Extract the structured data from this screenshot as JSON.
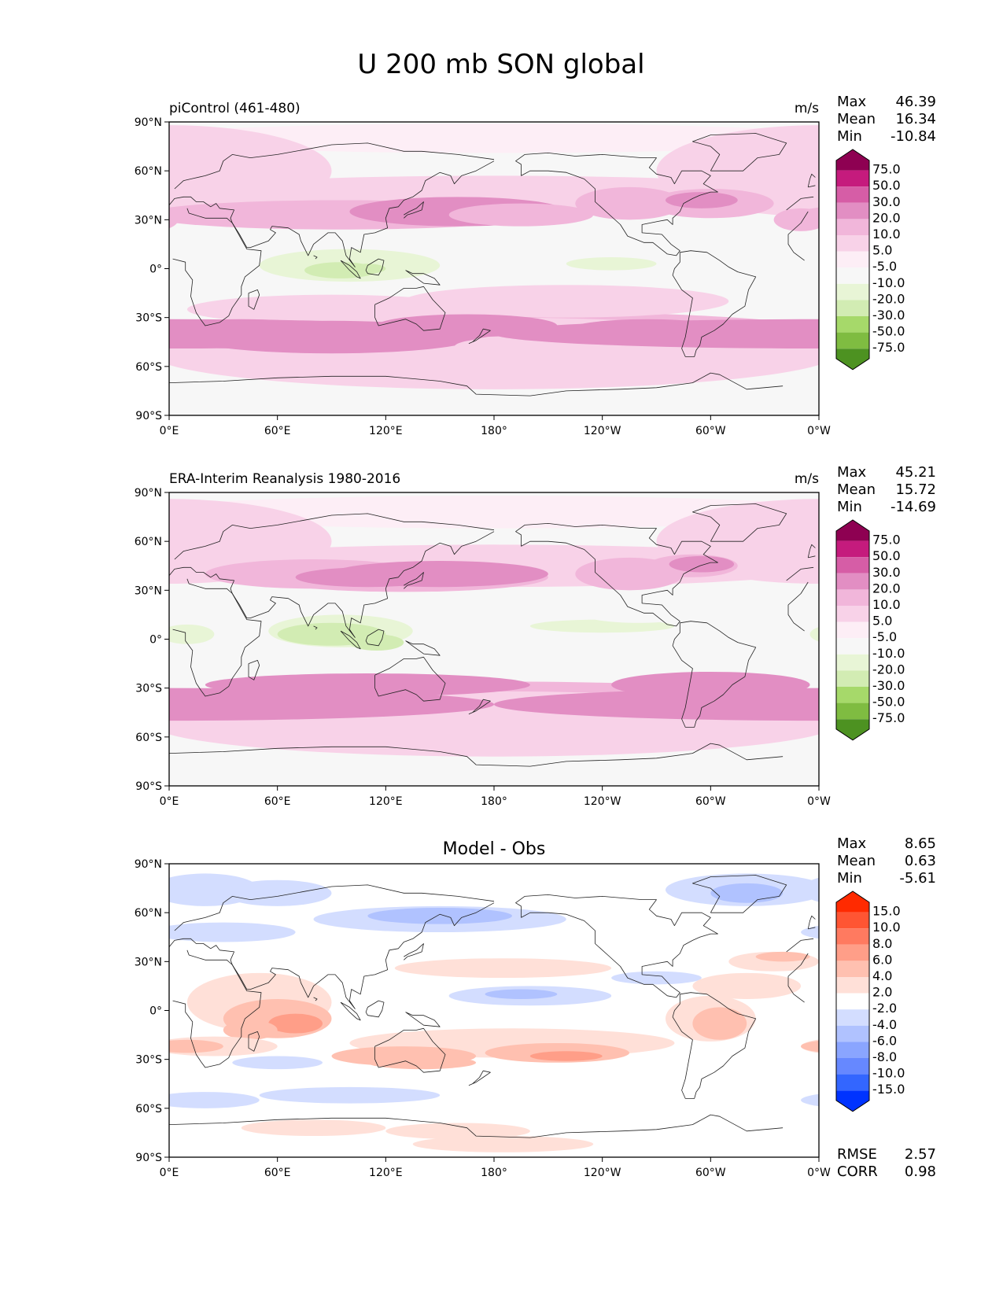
{
  "figure_title": "U 200 mb SON global",
  "colors": {
    "wind": [
      "#276419",
      "#4d9221",
      "#7fbc41",
      "#a6d96a",
      "#d2ecb3",
      "#e8f5d6",
      "#f7f7f7",
      "#fdeef6",
      "#f8d2e8",
      "#f1b6da",
      "#e28ec3",
      "#d65da6",
      "#c51b7d",
      "#8e0152"
    ],
    "diff": [
      "#0033ff",
      "#3366ff",
      "#6688ff",
      "#8aa5ff",
      "#b0c2ff",
      "#d3ddff",
      "#ffffff",
      "#ffe0d8",
      "#ffc0b0",
      "#ff9e88",
      "#ff7a60",
      "#ff5533",
      "#ff2a00"
    ]
  },
  "charts": [
    {
      "title_left": "piControl (461-480)",
      "title_center": "",
      "units": "m/s",
      "stats": [
        {
          "label": "Max",
          "value": "46.39"
        },
        {
          "label": "Mean",
          "value": "16.34"
        },
        {
          "label": "Min",
          "value": "-10.84"
        }
      ],
      "extra_stats": [],
      "colorbar_labels": [
        "75.0",
        "50.0",
        "30.0",
        "20.0",
        "10.0",
        "5.0",
        "-5.0",
        "-10.0",
        "-20.0",
        "-30.0",
        "-50.0",
        "-75.0"
      ],
      "palette": "wind"
    },
    {
      "title_left": "ERA-Interim Reanalysis 1980-2016",
      "title_center": "",
      "units": "m/s",
      "stats": [
        {
          "label": "Max",
          "value": "45.21"
        },
        {
          "label": "Mean",
          "value": "15.72"
        },
        {
          "label": "Min",
          "value": "-14.69"
        }
      ],
      "extra_stats": [],
      "colorbar_labels": [
        "75.0",
        "50.0",
        "30.0",
        "20.0",
        "10.0",
        "5.0",
        "-5.0",
        "-10.0",
        "-20.0",
        "-30.0",
        "-50.0",
        "-75.0"
      ],
      "palette": "wind"
    },
    {
      "title_left": "",
      "title_center": "Model - Obs",
      "units": "",
      "stats": [
        {
          "label": "Max",
          "value": "8.65"
        },
        {
          "label": "Mean",
          "value": "0.63"
        },
        {
          "label": "Min",
          "value": "-5.61"
        }
      ],
      "extra_stats": [
        {
          "label": "RMSE",
          "value": "2.57"
        },
        {
          "label": "CORR",
          "value": "0.98"
        }
      ],
      "colorbar_labels": [
        "15.0",
        "10.0",
        "8.0",
        "6.0",
        "4.0",
        "2.0",
        "-2.0",
        "-4.0",
        "-6.0",
        "-8.0",
        "-10.0",
        "-15.0"
      ],
      "palette": "diff"
    }
  ],
  "axes": {
    "lat_ticks": [
      "90°N",
      "60°N",
      "30°N",
      "0°",
      "30°S",
      "60°S",
      "90°S"
    ],
    "lon_ticks": [
      "0°E",
      "60°E",
      "120°E",
      "180°",
      "120°W",
      "60°W",
      "0°W"
    ]
  },
  "chart_data": [
    {
      "type": "heatmap",
      "title": "piControl (461-480)",
      "units": "m/s",
      "xlim": [
        0,
        360
      ],
      "ylim": [
        -90,
        90
      ],
      "levels": [
        -75,
        -50,
        -30,
        -20,
        -10,
        -5,
        5,
        10,
        20,
        30,
        50,
        75
      ],
      "max": 46.39,
      "mean": 16.34,
      "min": -10.84
    },
    {
      "type": "heatmap",
      "title": "ERA-Interim Reanalysis 1980-2016",
      "units": "m/s",
      "xlim": [
        0,
        360
      ],
      "ylim": [
        -90,
        90
      ],
      "levels": [
        -75,
        -50,
        -30,
        -20,
        -10,
        -5,
        5,
        10,
        20,
        30,
        50,
        75
      ],
      "max": 45.21,
      "mean": 15.72,
      "min": -14.69
    },
    {
      "type": "heatmap",
      "title": "Model - Obs",
      "xlim": [
        0,
        360
      ],
      "ylim": [
        -90,
        90
      ],
      "levels": [
        -15,
        -10,
        -8,
        -6,
        -4,
        -2,
        2,
        4,
        6,
        8,
        10,
        15
      ],
      "max": 8.65,
      "mean": 0.63,
      "min": -5.61,
      "rmse": 2.57,
      "corr": 0.98
    }
  ]
}
